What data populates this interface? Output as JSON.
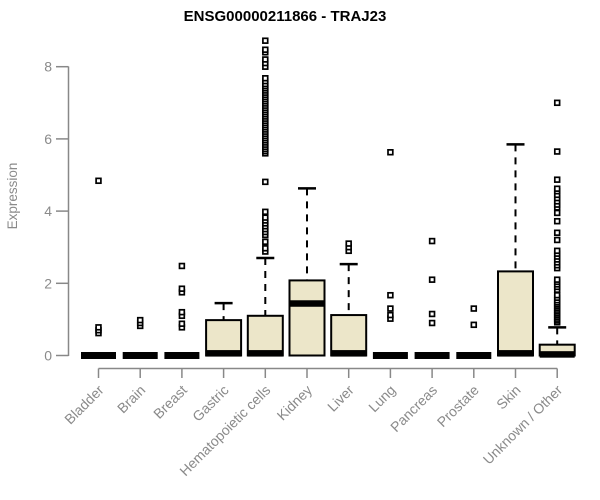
{
  "chart_data": {
    "type": "boxplot",
    "title": "ENSG00000211866 - TRAJ23",
    "ylabel": "Expression",
    "xlabel": "",
    "ylim": [
      0,
      8.8
    ],
    "yticks": [
      0,
      2,
      4,
      6,
      8
    ],
    "grid": false,
    "legend": false,
    "colors": {
      "box_fill": "#ece6c9",
      "box_border": "#000000",
      "median": "#000000",
      "outlier": "#000000",
      "axis": "#888888",
      "axis_text": "#8a8a8a",
      "title_text": "#000000"
    },
    "categories": [
      "Bladder",
      "Brain",
      "Breast",
      "Gastric",
      "Hematopoietic cells",
      "Kidney",
      "Liver",
      "Lung",
      "Pancreas",
      "Prostate",
      "Skin",
      "Unknown / Other"
    ],
    "boxes": [
      {
        "category": "Bladder",
        "q1": 0,
        "median": 0,
        "q3": 0,
        "whisker_low": 0,
        "whisker_high": 0,
        "outliers": [
          0.62,
          0.7,
          0.78,
          4.84
        ]
      },
      {
        "category": "Brain",
        "q1": 0,
        "median": 0,
        "q3": 0,
        "whisker_low": 0,
        "whisker_high": 0,
        "outliers": [
          0.82,
          0.9,
          0.98
        ]
      },
      {
        "category": "Breast",
        "q1": 0,
        "median": 0,
        "q3": 0,
        "whisker_low": 0,
        "whisker_high": 0,
        "outliers": [
          0.78,
          0.88,
          1.1,
          1.2,
          1.75,
          1.85,
          2.48
        ]
      },
      {
        "category": "Gastric",
        "q1": 0,
        "median": 0.06,
        "q3": 0.98,
        "whisker_low": 0,
        "whisker_high": 1.45,
        "outliers": []
      },
      {
        "category": "Hematopoietic cells",
        "q1": 0,
        "median": 0.06,
        "q3": 1.1,
        "whisker_low": 0,
        "whisker_high": 2.7,
        "outliers": [
          2.88,
          2.97,
          3.15,
          3.34,
          3.42,
          3.5,
          3.58,
          3.66,
          3.74,
          3.82,
          3.98,
          4.81,
          5.6,
          5.66,
          5.72,
          5.78,
          5.84,
          5.9,
          5.96,
          6.02,
          6.08,
          6.14,
          6.2,
          6.26,
          6.32,
          6.38,
          6.44,
          6.5,
          6.56,
          6.62,
          6.68,
          6.74,
          6.8,
          6.86,
          6.92,
          6.98,
          7.04,
          7.1,
          7.16,
          7.22,
          7.28,
          7.34,
          7.4,
          7.46,
          7.52,
          7.6,
          7.68,
          8.0,
          8.1,
          8.2,
          8.4,
          8.47,
          8.72
        ]
      },
      {
        "category": "Kidney",
        "q1": 0,
        "median": 1.44,
        "q3": 2.08,
        "whisker_low": 0,
        "whisker_high": 4.63,
        "outliers": []
      },
      {
        "category": "Liver",
        "q1": 0,
        "median": 0.06,
        "q3": 1.12,
        "whisker_low": 0,
        "whisker_high": 2.53,
        "outliers": [
          2.9,
          3.0,
          3.1
        ]
      },
      {
        "category": "Lung",
        "q1": 0,
        "median": 0,
        "q3": 0,
        "whisker_low": 0,
        "whisker_high": 0,
        "outliers": [
          1.02,
          1.12,
          1.3,
          1.67,
          5.63
        ]
      },
      {
        "category": "Pancreas",
        "q1": 0,
        "median": 0,
        "q3": 0,
        "whisker_low": 0,
        "whisker_high": 0,
        "outliers": [
          0.9,
          1.15,
          2.1,
          3.17
        ]
      },
      {
        "category": "Prostate",
        "q1": 0,
        "median": 0,
        "q3": 0,
        "whisker_low": 0,
        "whisker_high": 0,
        "outliers": [
          0.85,
          1.3
        ]
      },
      {
        "category": "Skin",
        "q1": 0,
        "median": 0.06,
        "q3": 2.33,
        "whisker_low": 0,
        "whisker_high": 5.85,
        "outliers": []
      },
      {
        "category": "Unknown / Other",
        "q1": 0,
        "median": 0.03,
        "q3": 0.3,
        "whisker_low": 0,
        "whisker_high": 0.78,
        "outliers": [
          0.92,
          0.97,
          1.02,
          1.07,
          1.12,
          1.17,
          1.22,
          1.27,
          1.32,
          1.37,
          1.42,
          1.47,
          1.53,
          1.6,
          1.67,
          1.82,
          1.9,
          1.97,
          2.04,
          2.1,
          2.42,
          2.5,
          2.58,
          2.66,
          2.74,
          2.82,
          2.9,
          3.2,
          3.4,
          3.72,
          3.95,
          4.1,
          4.18,
          4.27,
          4.36,
          4.45,
          4.55,
          4.62,
          4.87,
          5.65,
          7.0
        ]
      }
    ]
  }
}
